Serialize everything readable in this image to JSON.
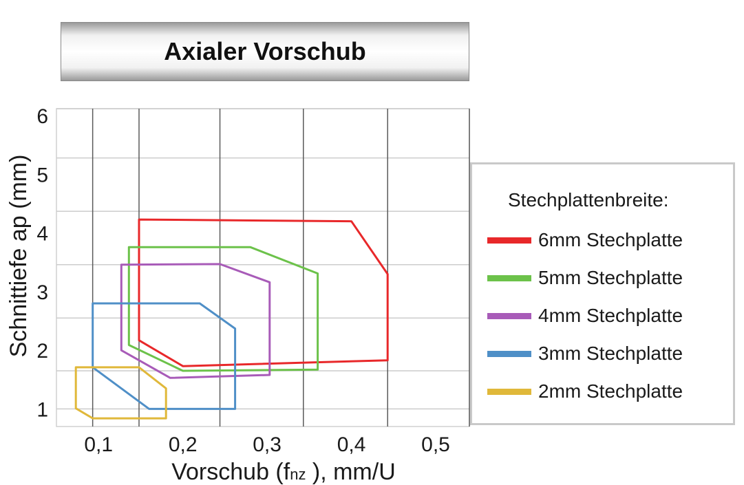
{
  "chart_data": {
    "type": "area",
    "title": "Axialer Vorschub",
    "xlabel": "Vorschub (f",
    "xlabel_subscript": "nz",
    "xlabel_suffix": " ), mm/U",
    "ylabel": "Schnittiefe ap (mm)",
    "xlim": [
      0.05,
      0.54
    ],
    "ylim": [
      0.7,
      6.12
    ],
    "x_ticks": [
      0.1,
      0.2,
      0.3,
      0.4,
      0.5
    ],
    "x_tick_labels": [
      "0,1",
      "0,2",
      "0,3",
      "0,4",
      "0,5"
    ],
    "y_ticks": [
      1,
      2,
      3,
      4,
      5,
      6
    ],
    "y_tick_labels": [
      "1",
      "2",
      "3",
      "4",
      "5",
      "6"
    ],
    "vgrid": [
      0.093,
      0.148,
      0.244,
      0.343,
      0.443,
      0.54
    ],
    "hgrid": [
      1.0,
      1.65,
      2.55,
      3.46,
      4.37,
      5.28,
      6.12
    ],
    "grid": true,
    "legend_position": "right",
    "legend_title": "Stechplattenbreite:",
    "series": [
      {
        "name": "6mm Stechplatte",
        "color": "#e8282a",
        "points": [
          [
            0.148,
            4.23
          ],
          [
            0.4,
            4.2
          ],
          [
            0.443,
            3.3
          ],
          [
            0.443,
            1.83
          ],
          [
            0.2,
            1.73
          ],
          [
            0.148,
            2.17
          ]
        ]
      },
      {
        "name": "5mm Stechplatte",
        "color": "#6cc24a",
        "points": [
          [
            0.136,
            3.76
          ],
          [
            0.28,
            3.76
          ],
          [
            0.36,
            3.31
          ],
          [
            0.36,
            1.67
          ],
          [
            0.2,
            1.65
          ],
          [
            0.136,
            2.09
          ]
        ]
      },
      {
        "name": "4mm Stechplatte",
        "color": "#a85bb8",
        "points": [
          [
            0.127,
            3.46
          ],
          [
            0.244,
            3.47
          ],
          [
            0.303,
            3.16
          ],
          [
            0.303,
            1.58
          ],
          [
            0.185,
            1.53
          ],
          [
            0.127,
            2.0
          ]
        ]
      },
      {
        "name": "3mm Stechplatte",
        "color": "#4f8fc7",
        "points": [
          [
            0.093,
            2.8
          ],
          [
            0.22,
            2.8
          ],
          [
            0.262,
            2.37
          ],
          [
            0.262,
            1.0
          ],
          [
            0.16,
            1.0
          ],
          [
            0.093,
            1.71
          ]
        ]
      },
      {
        "name": "2mm Stechplatte",
        "color": "#e0b83a",
        "points": [
          [
            0.073,
            1.71
          ],
          [
            0.148,
            1.71
          ],
          [
            0.18,
            1.35
          ],
          [
            0.18,
            0.84
          ],
          [
            0.093,
            0.84
          ],
          [
            0.073,
            1.01
          ]
        ]
      }
    ]
  }
}
